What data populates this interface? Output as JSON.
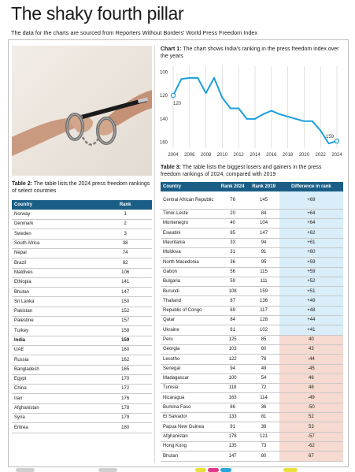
{
  "header": {
    "title": "The shaky fourth pillar",
    "subtitle": "The data for the charts are sourced from Reporters Without Borders' World Press Freedom Index"
  },
  "photo": {
    "alt": "Handcuffed hands holding a pen"
  },
  "table2": {
    "caption_bold": "Table 2:",
    "caption": " The table lists the 2024 press freedom rankings of select countries",
    "headers": [
      "Country",
      "Rank"
    ],
    "rows": [
      [
        "Norway",
        "1"
      ],
      [
        "Denmark",
        "2"
      ],
      [
        "Sweden",
        "3"
      ],
      [
        "South Africa",
        "38"
      ],
      [
        "Nepal",
        "74"
      ],
      [
        "Brazil",
        "82"
      ],
      [
        "Maldives",
        "106"
      ],
      [
        "Ethiopia",
        "141"
      ],
      [
        "Bhutan",
        "147"
      ],
      [
        "Sri Lanka",
        "150"
      ],
      [
        "Pakistan",
        "152"
      ],
      [
        "Palestine",
        "157"
      ],
      [
        "Turkey",
        "158"
      ],
      [
        "India",
        "159"
      ],
      [
        "UAE",
        "160"
      ],
      [
        "Russia",
        "162"
      ],
      [
        "Bangladesh",
        "165"
      ],
      [
        "Egypt",
        "170"
      ],
      [
        "China",
        "172"
      ],
      [
        "Iran",
        "176"
      ],
      [
        "Afghanistan",
        "178"
      ],
      [
        "Syria",
        "179"
      ],
      [
        "Eritrea",
        "180"
      ]
    ],
    "highlight_row": "India"
  },
  "chart1": {
    "caption_bold": "Chart 1:",
    "caption": " The chart shows India's ranking in the press freedom index over the years"
  },
  "chart_data": {
    "type": "line",
    "title": "",
    "xlabel": "",
    "ylabel": "",
    "x": [
      2004,
      2005,
      2006,
      2007,
      2008,
      2009,
      2010,
      2011,
      2012,
      2013,
      2014,
      2015,
      2016,
      2017,
      2018,
      2019,
      2020,
      2021,
      2022,
      2023,
      2024
    ],
    "values": [
      120,
      106,
      105,
      105,
      118,
      105,
      122,
      131,
      131,
      140,
      140,
      136,
      133,
      136,
      138,
      140,
      142,
      142,
      150,
      161,
      159
    ],
    "x_ticks": [
      "2004",
      "2006",
      "2008",
      "2010",
      "2012",
      "2014",
      "2016",
      "2018",
      "2020",
      "2022",
      "2024"
    ],
    "y_ticks": [
      100,
      120,
      140,
      160
    ],
    "ylim": [
      95,
      165
    ],
    "y_inverted": true,
    "grid": "vertical",
    "point_labels": [
      {
        "x": 2004,
        "text": "120"
      },
      {
        "x": 2024,
        "text": "159"
      }
    ],
    "line_color": "#1aa0dc",
    "point_color": "#ffffff"
  },
  "table3": {
    "caption_bold": "Table 3:",
    "caption": " The table lists the biggest losers and gainers in the press freedom rankings of 2024, compared with 2019",
    "headers": [
      "Country",
      "Rank 2024",
      "Rank 2019",
      "Difference in rank"
    ],
    "rows": [
      [
        "Central African Republic",
        "76",
        "145",
        "+69"
      ],
      [
        "Timor-Leste",
        "20",
        "84",
        "+64"
      ],
      [
        "Montenegro",
        "40",
        "104",
        "+64"
      ],
      [
        "Eswatini",
        "85",
        "147",
        "+62"
      ],
      [
        "Mauritania",
        "33",
        "94",
        "+61"
      ],
      [
        "Moldova",
        "31",
        "91",
        "+60"
      ],
      [
        "North Macedonia",
        "36",
        "95",
        "+59"
      ],
      [
        "Gabon",
        "56",
        "115",
        "+59"
      ],
      [
        "Bulgaria",
        "59",
        "111",
        "+52"
      ],
      [
        "Burundi",
        "108",
        "159",
        "+51"
      ],
      [
        "Thailand",
        "87",
        "136",
        "+49"
      ],
      [
        "Republic of Congo",
        "69",
        "117",
        "+48"
      ],
      [
        "Qatar",
        "84",
        "128",
        "+44"
      ],
      [
        "Ukraine",
        "61",
        "102",
        "+41"
      ],
      [
        "Peru",
        "125",
        "85",
        "40"
      ],
      [
        "Georgia",
        "103",
        "60",
        "43"
      ],
      [
        "Lesotho",
        "122",
        "78",
        "-44"
      ],
      [
        "Senegal",
        "94",
        "49",
        "-45"
      ],
      [
        "Madagascar",
        "100",
        "54",
        "46"
      ],
      [
        "Tunisia",
        "118",
        "72",
        "46"
      ],
      [
        "Nicaragua",
        "163",
        "114",
        "-49"
      ],
      [
        "Burkina Faso",
        "86",
        "36",
        "-50"
      ],
      [
        "El Salvador",
        "133",
        "81",
        "52"
      ],
      [
        "Papua New Guinea",
        "91",
        "38",
        "53"
      ],
      [
        "Afghanistan",
        "178",
        "121",
        "-57"
      ],
      [
        "Hong Kong",
        "135",
        "73",
        "-62"
      ],
      [
        "Bhutan",
        "147",
        "80",
        "67"
      ]
    ]
  },
  "colors": {
    "header": "#1a5e86",
    "gain": "#d9eef8",
    "lose": "#f6d9d1",
    "line": "#1aa0dc"
  }
}
